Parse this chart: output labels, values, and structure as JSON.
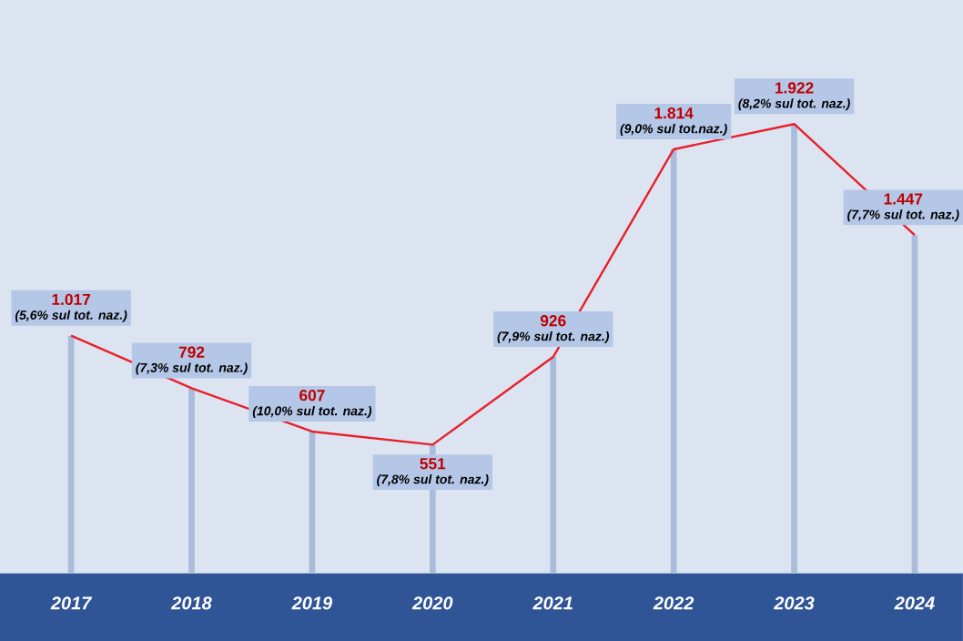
{
  "chart_data": {
    "type": "line",
    "categories": [
      "2017",
      "2018",
      "2019",
      "2020",
      "2021",
      "2022",
      "2023",
      "2024"
    ],
    "series": [
      {
        "color": "#e8202a",
        "values": [
          1017,
          792,
          607,
          551,
          926,
          1814,
          1922,
          1447
        ],
        "value_labels": [
          "1.017",
          "792",
          "607",
          "551",
          "926",
          "1.814",
          "1.922",
          "1.447"
        ]
      }
    ],
    "annotations": [
      {
        "text": "(5,6% sul tot. naz.)",
        "x": "2017",
        "y": 1017
      },
      {
        "text": "(7,3% sul tot. naz.)",
        "x": "2018",
        "y": 792
      },
      {
        "text": "(10,0% sul tot. naz.)",
        "x": "2019",
        "y": 607
      },
      {
        "text": "(7,8% sul tot. naz.)",
        "x": "2020",
        "y": 551
      },
      {
        "text": "(7,9% sul tot. naz.)",
        "x": "2021",
        "y": 926
      },
      {
        "text": "(9,0% sul tot.naz.)",
        "x": "2022",
        "y": 1814
      },
      {
        "text": "(8,2% sul tot. naz.)",
        "x": "2023",
        "y": 1922
      },
      {
        "text": "(7,7% sul tot. naz.)",
        "x": "2024",
        "y": 1447
      }
    ],
    "grid": "x",
    "marker": "none",
    "line_style": "solid"
  }
}
